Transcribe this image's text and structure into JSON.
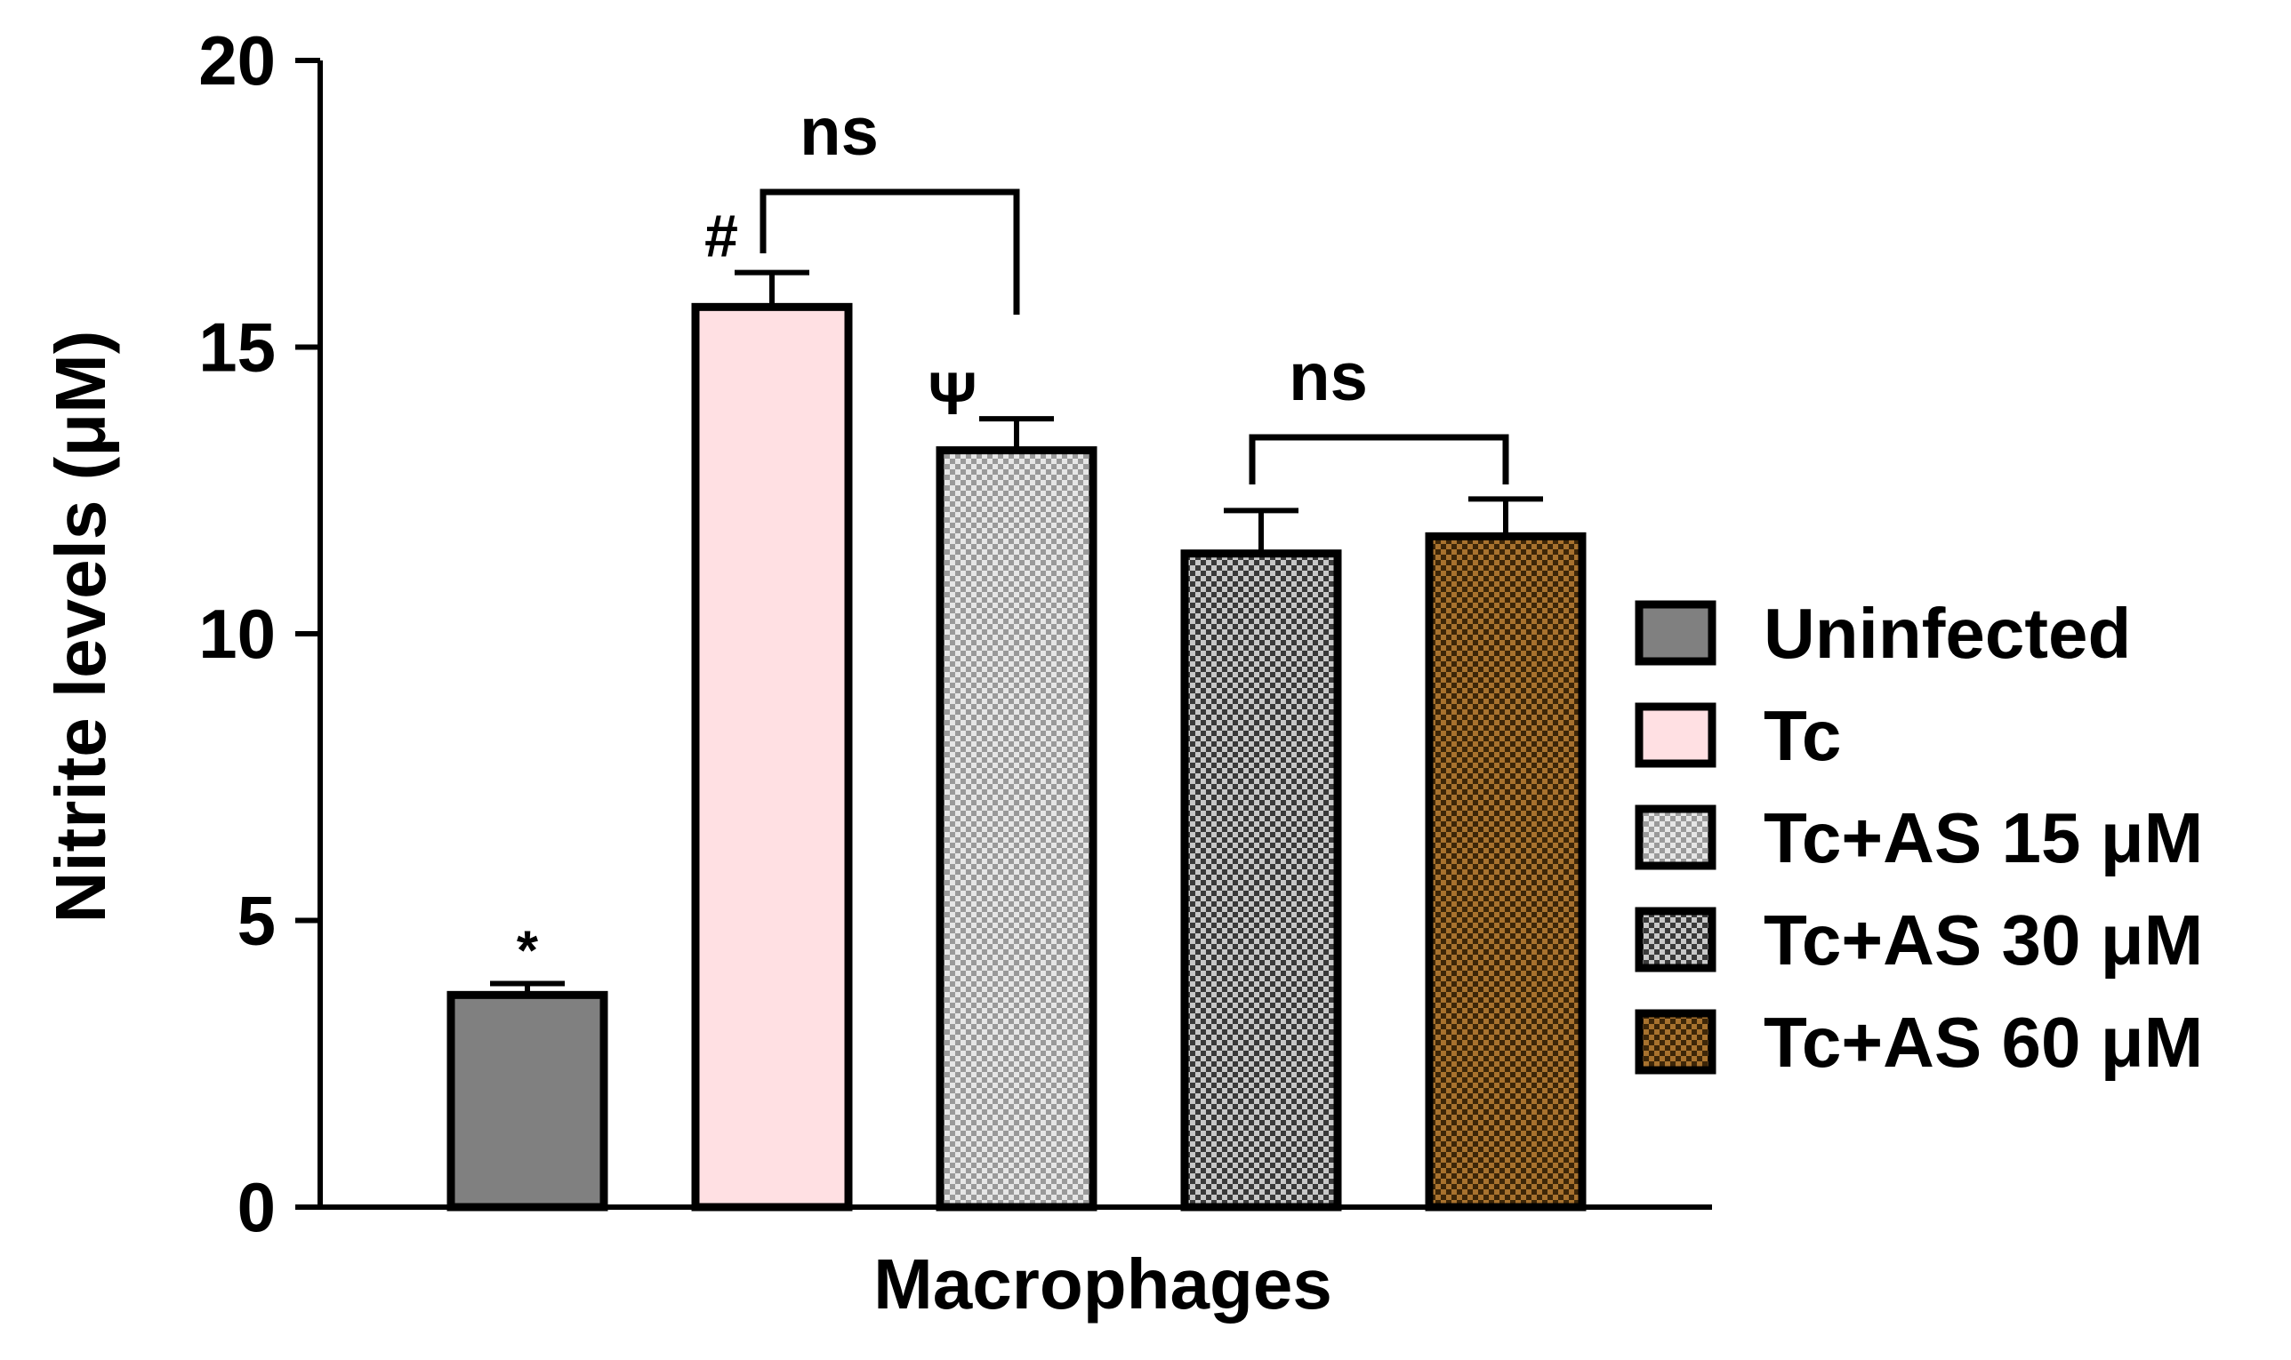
{
  "chart_data": {
    "type": "bar",
    "xlabel": "Macrophages",
    "ylabel": "Nitrite levels (μM)",
    "ylim": [
      0,
      20
    ],
    "yticks": [
      0,
      5,
      10,
      15,
      20
    ],
    "grid": false,
    "legend_position": "right",
    "series": [
      {
        "name": "Uninfected",
        "value": 3.7,
        "error": 0.2,
        "color": "#808080",
        "pattern": "solid",
        "annotation": "*"
      },
      {
        "name": "Tc",
        "value": 15.7,
        "error": 0.6,
        "color": "#ffe0e3",
        "pattern": "solid",
        "annotation": "#"
      },
      {
        "name": "Tc+AS 15 μM",
        "value": 13.2,
        "error": 0.55,
        "color": "#c8c8c8",
        "pattern": "checker-light",
        "annotation": "Ψ"
      },
      {
        "name": "Tc+AS 30 μM",
        "value": 11.4,
        "error": 0.75,
        "color": "#6e6e6e",
        "pattern": "checker-dark",
        "annotation": ""
      },
      {
        "name": "Tc+AS 60 μM",
        "value": 11.7,
        "error": 0.65,
        "color": "#8b5a1c",
        "pattern": "checker-brown",
        "annotation": ""
      }
    ],
    "comparisons": [
      {
        "from": 1,
        "to": 2,
        "label": "ns"
      },
      {
        "from": 3,
        "to": 4,
        "label": "ns"
      }
    ]
  }
}
